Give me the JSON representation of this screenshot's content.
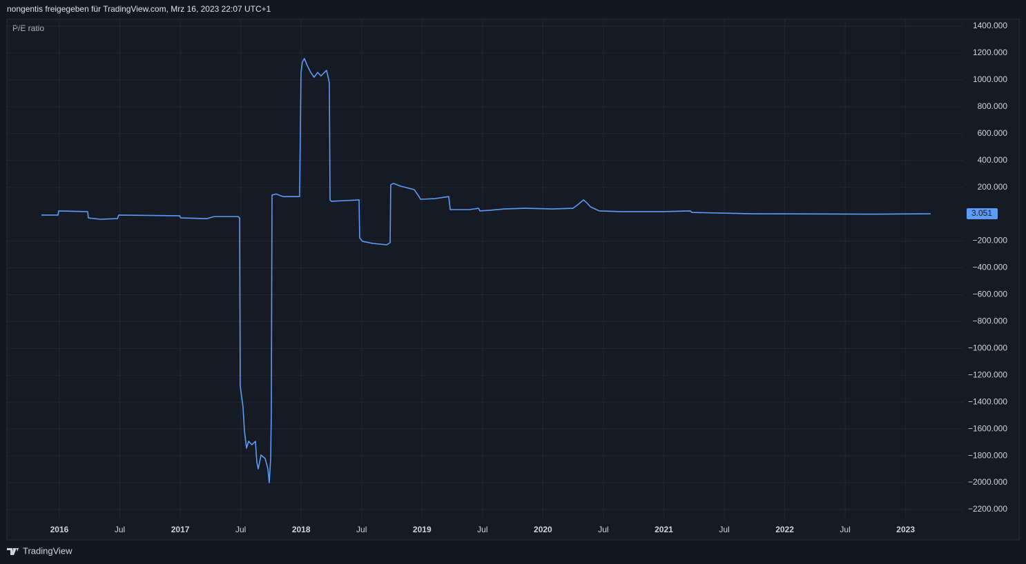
{
  "header": "nongentis freigegeben für TradingView.com, Mrz 16, 2023 22:07 UTC+1",
  "footer": "TradingView",
  "chart_data": {
    "type": "line",
    "title": "P/E ratio",
    "grid": true,
    "series": [
      {
        "name": "P/E ratio",
        "color": "#5b9cf6",
        "x": [
          2015.852,
          2015.989,
          2015.994,
          2016.234,
          2016.24,
          2016.337,
          2016.48,
          2016.491,
          2016.994,
          2017.005,
          2017.222,
          2017.279,
          2017.479,
          2017.491,
          2017.496,
          2017.519,
          2017.531,
          2017.548,
          2017.565,
          2017.593,
          2017.622,
          2017.633,
          2017.645,
          2017.668,
          2017.702,
          2017.725,
          2017.736,
          2017.748,
          2017.753,
          2017.759,
          2017.793,
          2017.85,
          2017.987,
          2017.999,
          2018.01,
          2018.027,
          2018.05,
          2018.079,
          2018.107,
          2018.136,
          2018.164,
          2018.193,
          2018.21,
          2018.227,
          2018.233,
          2018.239,
          2018.25,
          2018.479,
          2018.484,
          2018.507,
          2018.593,
          2018.707,
          2018.736,
          2018.741,
          2018.764,
          2018.821,
          2018.935,
          2018.975,
          2018.987,
          2019.107,
          2019.221,
          2019.233,
          2019.393,
          2019.467,
          2019.479,
          2019.565,
          2019.679,
          2019.85,
          2020.078,
          2020.249,
          2020.295,
          2020.335,
          2020.363,
          2020.392,
          2020.466,
          2020.649,
          2020.98,
          2021.22,
          2021.231,
          2021.488,
          2021.734,
          2022.705,
          2023.207
        ],
        "values": [
          -7,
          -7,
          24,
          19,
          -28,
          -38,
          -33,
          -7,
          -12,
          -28,
          -33,
          -18,
          -18,
          -28,
          -1281,
          -1435,
          -1615,
          -1743,
          -1692,
          -1717,
          -1692,
          -1846,
          -1897,
          -1794,
          -1820,
          -1897,
          -2000,
          -1820,
          -1486,
          142,
          150,
          131,
          131,
          1056,
          1133,
          1159,
          1107,
          1056,
          1020,
          1056,
          1030,
          1056,
          1071,
          1005,
          979,
          106,
          96,
          106,
          -177,
          -202,
          -218,
          -228,
          -213,
          219,
          229,
          209,
          183,
          131,
          111,
          116,
          131,
          34,
          34,
          44,
          24,
          29,
          39,
          44,
          39,
          44,
          75,
          106,
          85,
          55,
          24,
          19,
          19,
          24,
          13,
          8,
          3,
          0,
          3.051
        ]
      }
    ],
    "ylim": [
      -2280,
      1440
    ],
    "yticks": [
      {
        "value": 1400,
        "label": "1400.000"
      },
      {
        "value": 1200,
        "label": "1200.000"
      },
      {
        "value": 1000,
        "label": "1000.000"
      },
      {
        "value": 800,
        "label": "800.000"
      },
      {
        "value": 600,
        "label": "600.000"
      },
      {
        "value": 400,
        "label": "400.000"
      },
      {
        "value": 200,
        "label": "200.000"
      },
      {
        "value": -200,
        "label": "−200.000"
      },
      {
        "value": -400,
        "label": "−400.000"
      },
      {
        "value": -600,
        "label": "−600.000"
      },
      {
        "value": -800,
        "label": "−800.000"
      },
      {
        "value": -1000,
        "label": "−1000.000"
      },
      {
        "value": -1200,
        "label": "−1200.000"
      },
      {
        "value": -1400,
        "label": "−1400.000"
      },
      {
        "value": -1600,
        "label": "−1600.000"
      },
      {
        "value": -1800,
        "label": "−1800.000"
      },
      {
        "value": -2000,
        "label": "−2000.000"
      },
      {
        "value": -2200,
        "label": "−2200.000"
      }
    ],
    "xlim": [
      2015.566,
      2023.476
    ],
    "xticks": [
      2016,
      {
        "value": 2016.5,
        "label": "Jul"
      },
      2017,
      {
        "value": 2017.5,
        "label": "Jul"
      },
      2018,
      {
        "value": 2018.5,
        "label": "Jul"
      },
      2019,
      {
        "value": 2019.5,
        "label": "Jul"
      },
      2020,
      {
        "value": 2020.5,
        "label": "Jul"
      },
      2021,
      {
        "value": 2021.5,
        "label": "Jul"
      },
      2022,
      {
        "value": 2022.5,
        "label": "Jul"
      },
      2023
    ]
  }
}
